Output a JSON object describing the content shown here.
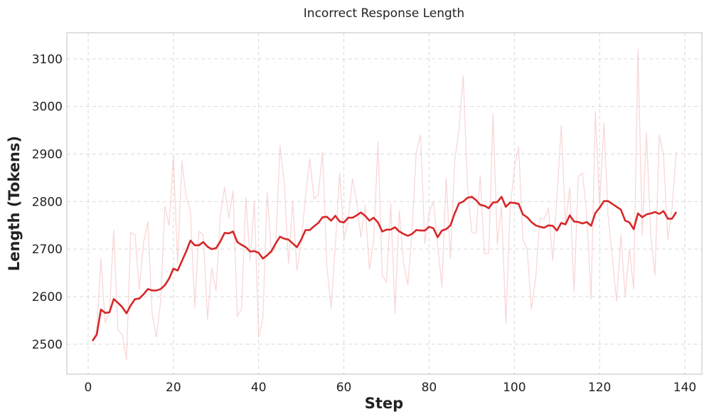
{
  "chart_data": {
    "type": "line",
    "title": "Incorrect Response Length",
    "xlabel": "Step",
    "ylabel": "Length (Tokens)",
    "xlim": [
      -5,
      144
    ],
    "ylim": [
      2437,
      3155
    ],
    "xticks": [
      0,
      20,
      40,
      60,
      80,
      100,
      120,
      140
    ],
    "yticks": [
      2500,
      2600,
      2700,
      2800,
      2900,
      3000,
      3100
    ],
    "grid": true,
    "legend": "none",
    "colors": {
      "raw": "#f4b6b6",
      "smoothed": "#d62728"
    },
    "series": [
      {
        "role": "raw",
        "x": [
          1,
          2,
          3,
          4,
          5,
          6,
          7,
          8,
          9,
          10,
          11,
          12,
          13,
          14,
          15,
          16,
          17,
          18,
          19,
          20,
          21,
          22,
          23,
          24,
          25,
          26,
          27,
          28,
          29,
          30,
          31,
          32,
          33,
          34,
          35,
          36,
          37,
          38,
          39,
          40,
          41,
          42,
          43,
          44,
          45,
          46,
          47,
          48,
          49,
          50,
          51,
          52,
          53,
          54,
          55,
          56,
          57,
          58,
          59,
          60,
          61,
          62,
          63,
          64,
          65,
          66,
          67,
          68,
          69,
          70,
          71,
          72,
          73,
          74,
          75,
          76,
          77,
          78,
          79,
          80,
          81,
          82,
          83,
          84,
          85,
          86,
          87,
          88,
          89,
          90,
          91,
          92,
          93,
          94,
          95,
          96,
          97,
          98,
          99,
          100,
          101,
          102,
          103,
          104,
          105,
          106,
          107,
          108,
          109,
          110,
          111,
          112,
          113,
          114,
          115,
          116,
          117,
          118,
          119,
          120,
          121,
          122,
          123,
          124,
          125,
          126,
          127,
          128,
          129,
          130,
          131,
          132,
          133,
          134,
          135,
          136,
          137,
          138
        ],
        "y": [
          2507,
          2530,
          2680,
          2545,
          2568,
          2740,
          2530,
          2520,
          2467,
          2735,
          2730,
          2615,
          2715,
          2757,
          2565,
          2515,
          2590,
          2790,
          2750,
          2895,
          2670,
          2885,
          2810,
          2780,
          2577,
          2737,
          2730,
          2553,
          2660,
          2612,
          2770,
          2830,
          2765,
          2822,
          2558,
          2575,
          2808,
          2676,
          2800,
          2515,
          2555,
          2820,
          2690,
          2705,
          2918,
          2840,
          2670,
          2800,
          2655,
          2715,
          2810,
          2890,
          2805,
          2815,
          2905,
          2665,
          2575,
          2710,
          2860,
          2720,
          2760,
          2848,
          2800,
          2725,
          2792,
          2657,
          2720,
          2925,
          2645,
          2630,
          2795,
          2565,
          2780,
          2670,
          2625,
          2740,
          2905,
          2940,
          2712,
          2775,
          2800,
          2710,
          2620,
          2850,
          2680,
          2885,
          2950,
          3065,
          2832,
          2735,
          2733,
          2855,
          2690,
          2692,
          2985,
          2710,
          2790,
          2544,
          2783,
          2870,
          2915,
          2720,
          2700,
          2573,
          2640,
          2766,
          2762,
          2786,
          2676,
          2810,
          2960,
          2750,
          2830,
          2610,
          2852,
          2860,
          2770,
          2595,
          2988,
          2790,
          2965,
          2770,
          2680,
          2590,
          2730,
          2600,
          2700,
          2615,
          3120,
          2730,
          2945,
          2730,
          2645,
          2940,
          2895,
          2720,
          2785,
          2905
        ]
      },
      {
        "role": "smoothed",
        "x": [
          1,
          2,
          3,
          4,
          5,
          6,
          7,
          8,
          9,
          10,
          11,
          12,
          13,
          14,
          15,
          16,
          17,
          18,
          19,
          20,
          21,
          22,
          23,
          24,
          25,
          26,
          27,
          28,
          29,
          30,
          31,
          32,
          33,
          34,
          35,
          36,
          37,
          38,
          39,
          40,
          41,
          42,
          43,
          44,
          45,
          46,
          47,
          48,
          49,
          50,
          51,
          52,
          53,
          54,
          55,
          56,
          57,
          58,
          59,
          60,
          61,
          62,
          63,
          64,
          65,
          66,
          67,
          68,
          69,
          70,
          71,
          72,
          73,
          74,
          75,
          76,
          77,
          78,
          79,
          80,
          81,
          82,
          83,
          84,
          85,
          86,
          87,
          88,
          89,
          90,
          91,
          92,
          93,
          94,
          95,
          96,
          97,
          98,
          99,
          100,
          101,
          102,
          103,
          104,
          105,
          106,
          107,
          108,
          109,
          110,
          111,
          112,
          113,
          114,
          115,
          116,
          117,
          118,
          119,
          120,
          121,
          122,
          123,
          124,
          125,
          126,
          127,
          128,
          129,
          130,
          131,
          132,
          133,
          134,
          135,
          136,
          137,
          138
        ],
        "y": [
          2507,
          2520,
          2573,
          2566,
          2567,
          2595,
          2587,
          2578,
          2565,
          2582,
          2595,
          2596,
          2605,
          2616,
          2613,
          2613,
          2616,
          2624,
          2638,
          2659,
          2655,
          2675,
          2695,
          2718,
          2708,
          2708,
          2715,
          2705,
          2700,
          2702,
          2716,
          2734,
          2733,
          2737,
          2715,
          2709,
          2704,
          2695,
          2696,
          2692,
          2680,
          2687,
          2696,
          2712,
          2726,
          2722,
          2720,
          2712,
          2704,
          2720,
          2740,
          2740,
          2748,
          2755,
          2767,
          2768,
          2760,
          2770,
          2758,
          2756,
          2766,
          2766,
          2771,
          2777,
          2770,
          2760,
          2766,
          2756,
          2737,
          2741,
          2741,
          2746,
          2737,
          2732,
          2728,
          2732,
          2740,
          2739,
          2739,
          2747,
          2744,
          2725,
          2739,
          2742,
          2750,
          2775,
          2796,
          2800,
          2808,
          2810,
          2803,
          2793,
          2791,
          2786,
          2798,
          2799,
          2810,
          2789,
          2798,
          2797,
          2795,
          2773,
          2767,
          2757,
          2750,
          2747,
          2745,
          2750,
          2749,
          2739,
          2755,
          2752,
          2771,
          2758,
          2757,
          2754,
          2757,
          2749,
          2776,
          2787,
          2801,
          2801,
          2795,
          2789,
          2783,
          2760,
          2756,
          2742,
          2775,
          2767,
          2773,
          2775,
          2778,
          2774,
          2780,
          2764,
          2764,
          2778
        ]
      }
    ]
  }
}
